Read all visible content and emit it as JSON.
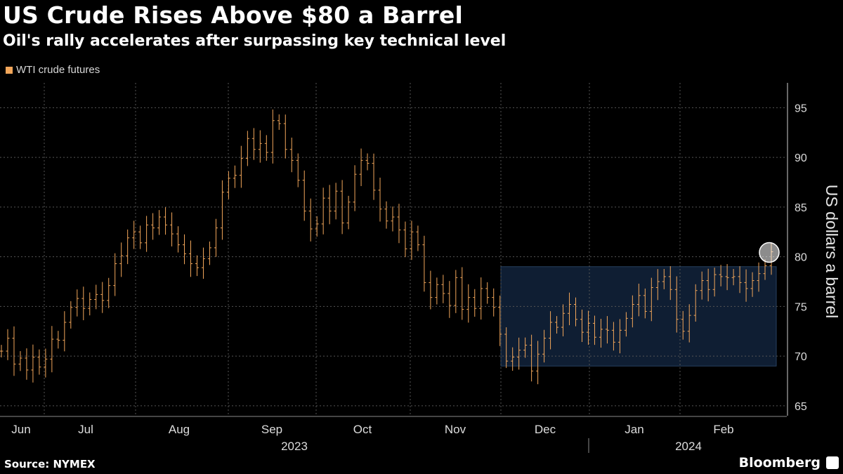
{
  "title": "US Crude Rises Above $80 a Barrel",
  "subtitle": "Oil's rally accelerates after surpassing key technical level",
  "source": "Source: NYMEX",
  "brand": "Bloomberg",
  "colors": {
    "series": "#f2a65a",
    "band_fill": "#0f1e33",
    "band_stroke": "#27405f",
    "grid": "#555555"
  },
  "chart_data": {
    "type": "ohlc",
    "title": "US Crude Rises Above $80 a Barrel",
    "legend": [
      "WTI crude futures"
    ],
    "ylabel": "US dollars a barrel",
    "ylim": [
      64,
      97.5
    ],
    "yticks": [
      65,
      70,
      75,
      80,
      85,
      90,
      95
    ],
    "month_labels": [
      "Jun",
      "Jul",
      "Aug",
      "Sep",
      "Oct",
      "Nov",
      "Dec",
      "Jan",
      "Feb"
    ],
    "year_labels": [
      "2023",
      "2024"
    ],
    "highlight_band": {
      "from_month": "Dec",
      "to_month": "Feb",
      "low": 69,
      "high": 79
    },
    "highlight_point": {
      "value": 80.5
    },
    "series": [
      {
        "name": "WTI crude futures",
        "values": [
          70.5,
          71.8,
          69.2,
          69.8,
          68.6,
          69.9,
          68.9,
          69.7,
          71.7,
          71.6,
          73.4,
          74.9,
          75.8,
          74.8,
          75.7,
          76.2,
          75.6,
          77.1,
          79.3,
          80.1,
          81.9,
          82.5,
          81.4,
          83.2,
          82.9,
          84.0,
          83.2,
          82.3,
          81.2,
          80.3,
          79.3,
          78.9,
          79.8,
          80.9,
          82.9,
          86.5,
          87.9,
          88.2,
          89.9,
          91.9,
          90.8,
          91.4,
          90.5,
          93.7,
          93.4,
          90.8,
          89.7,
          87.7,
          84.6,
          82.8,
          83.3,
          85.9,
          84.6,
          86.6,
          83.4,
          85.5,
          88.3,
          89.7,
          89.4,
          86.7,
          84.8,
          83.6,
          84.0,
          82.7,
          80.8,
          82.5,
          81.2,
          77.4,
          75.9,
          77.2,
          76.3,
          75.1,
          77.9,
          74.7,
          75.9,
          74.8,
          76.8,
          75.9,
          74.9,
          72.2,
          69.5,
          69.9,
          70.6,
          71.1,
          68.5,
          70.2,
          71.8,
          73.4,
          72.9,
          74.3,
          75.2,
          73.7,
          72.4,
          73.3,
          71.9,
          72.7,
          72.6,
          71.4,
          72.6,
          73.8,
          75.2,
          76.1,
          74.5,
          76.9,
          77.5,
          78.0,
          76.7,
          73.7,
          72.5,
          74.1,
          76.6,
          77.6,
          76.7,
          78.2,
          78.0,
          77.9,
          78.0,
          77.4,
          76.8,
          77.6,
          78.3,
          79.1,
          80.5
        ]
      }
    ]
  }
}
